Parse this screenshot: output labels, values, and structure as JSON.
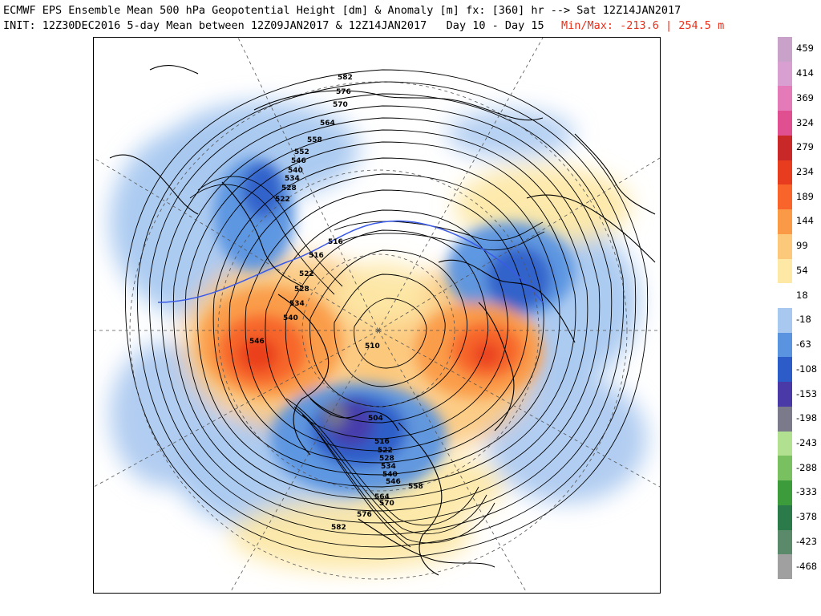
{
  "header": {
    "line1": "ECMWF EPS Ensemble Mean 500 hPa Geopotential Height [dm] & Anomaly [m] fx: [360] hr --> Sat 12Z14JAN2017",
    "line2": "INIT: 12Z30DEC2016 5-day Mean between 12Z09JAN2017 & 12Z14JAN2017   Day 10 - Day 15",
    "minmax": "Min/Max: -213.6 | 254.5 m"
  },
  "colorbar": {
    "labels": [
      "459",
      "414",
      "369",
      "324",
      "279",
      "234",
      "189",
      "144",
      "99",
      "54",
      "18",
      "-18",
      "-63",
      "-108",
      "-153",
      "-198",
      "-243",
      "-288",
      "-333",
      "-378",
      "-423",
      "-468"
    ],
    "colors": [
      "#c8a2c8",
      "#d7a0d0",
      "#e57ab8",
      "#e05090",
      "#c82828",
      "#e83c1e",
      "#f8642a",
      "#fa9a46",
      "#fcc87a",
      "#fde8a6",
      "#ffffff",
      "#a8c8f0",
      "#5a94e0",
      "#2c5cc8",
      "#4a3aa8",
      "#7a7a8a",
      "#b0e090",
      "#78c060",
      "#3c9c3c",
      "#2a7a4a",
      "#5a8a6a",
      "#a0a0a0"
    ]
  },
  "map": {
    "contour_labels": [
      "582",
      "576",
      "570",
      "564",
      "558",
      "552",
      "546",
      "540",
      "534",
      "528",
      "522",
      "516",
      "516",
      "522",
      "528",
      "534",
      "540",
      "546",
      "510",
      "504",
      "516",
      "522",
      "528",
      "534",
      "540",
      "546",
      "558",
      "564",
      "570",
      "576",
      "582"
    ]
  }
}
